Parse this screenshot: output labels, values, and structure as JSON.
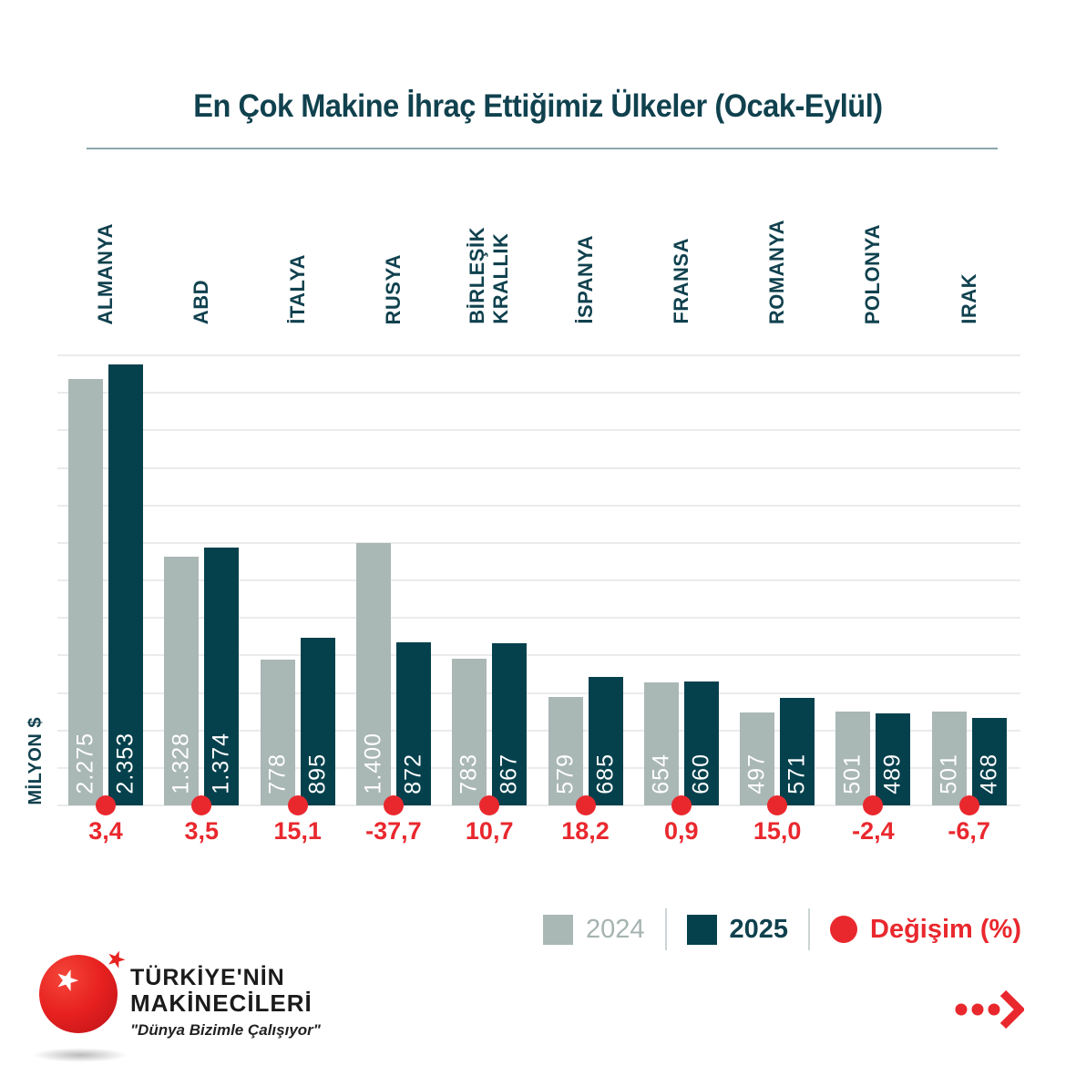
{
  "header": {
    "title": "En Çok Makine İhraç Ettiğimiz Ülkeler (Ocak-Eylül)"
  },
  "chart_data": {
    "type": "bar",
    "title": "En Çok Makine İhraç Ettiğimiz Ülkeler (Ocak-Eylül)",
    "unit_label": "MİLYON $",
    "categories": [
      "ALMANYA",
      "ABD",
      "İTALYA",
      "RUSYA",
      "BİRLEŞİK\nKRALLIK",
      "İSPANYA",
      "FRANSA",
      "ROMANYA",
      "POLONYA",
      "IRAK"
    ],
    "series": [
      {
        "name": "2024",
        "values": [
          2275,
          1328,
          778,
          1400,
          783,
          579,
          654,
          497,
          501,
          501
        ],
        "display": [
          "2.275",
          "1.328",
          "778",
          "1.400",
          "783",
          "579",
          "654",
          "497",
          "501",
          "501"
        ]
      },
      {
        "name": "2025",
        "values": [
          2353,
          1374,
          895,
          872,
          867,
          685,
          660,
          571,
          489,
          468
        ],
        "display": [
          "2.353",
          "1.374",
          "895",
          "872",
          "867",
          "685",
          "660",
          "571",
          "489",
          "468"
        ]
      }
    ],
    "change_series": {
      "name": "Değişim (%)",
      "display": [
        "3,4",
        "3,5",
        "15,1",
        "-37,7",
        "10,7",
        "18,2",
        "0,9",
        "15,0",
        "-2,4",
        "-6,7"
      ]
    },
    "ylim": [
      0,
      2400
    ],
    "gridline_step": 200,
    "grid": true,
    "legend_position": "bottom-right"
  },
  "legend": {
    "items": [
      {
        "label": "2024",
        "marker": "square"
      },
      {
        "label": "2025",
        "marker": "square"
      },
      {
        "label": "Değişim (%)",
        "marker": "circle"
      }
    ]
  },
  "colors": {
    "bar_2024": "#a9b7b5",
    "bar_2025": "#05414d",
    "accent_red": "#e9282e",
    "teal_text": "#10414e",
    "legend_2024_text": "#a5b3b1",
    "gridline": "#ebebeb",
    "title_rule": "#8ba7ae"
  },
  "footer": {
    "logo": {
      "line1": "TÜRKİYE'NİN",
      "line2": "MAKİNECİLERİ",
      "tagline": "\"Dünya Bizimle Çalışıyor\"",
      "ball_star": "★",
      "outer_star": "★"
    }
  }
}
